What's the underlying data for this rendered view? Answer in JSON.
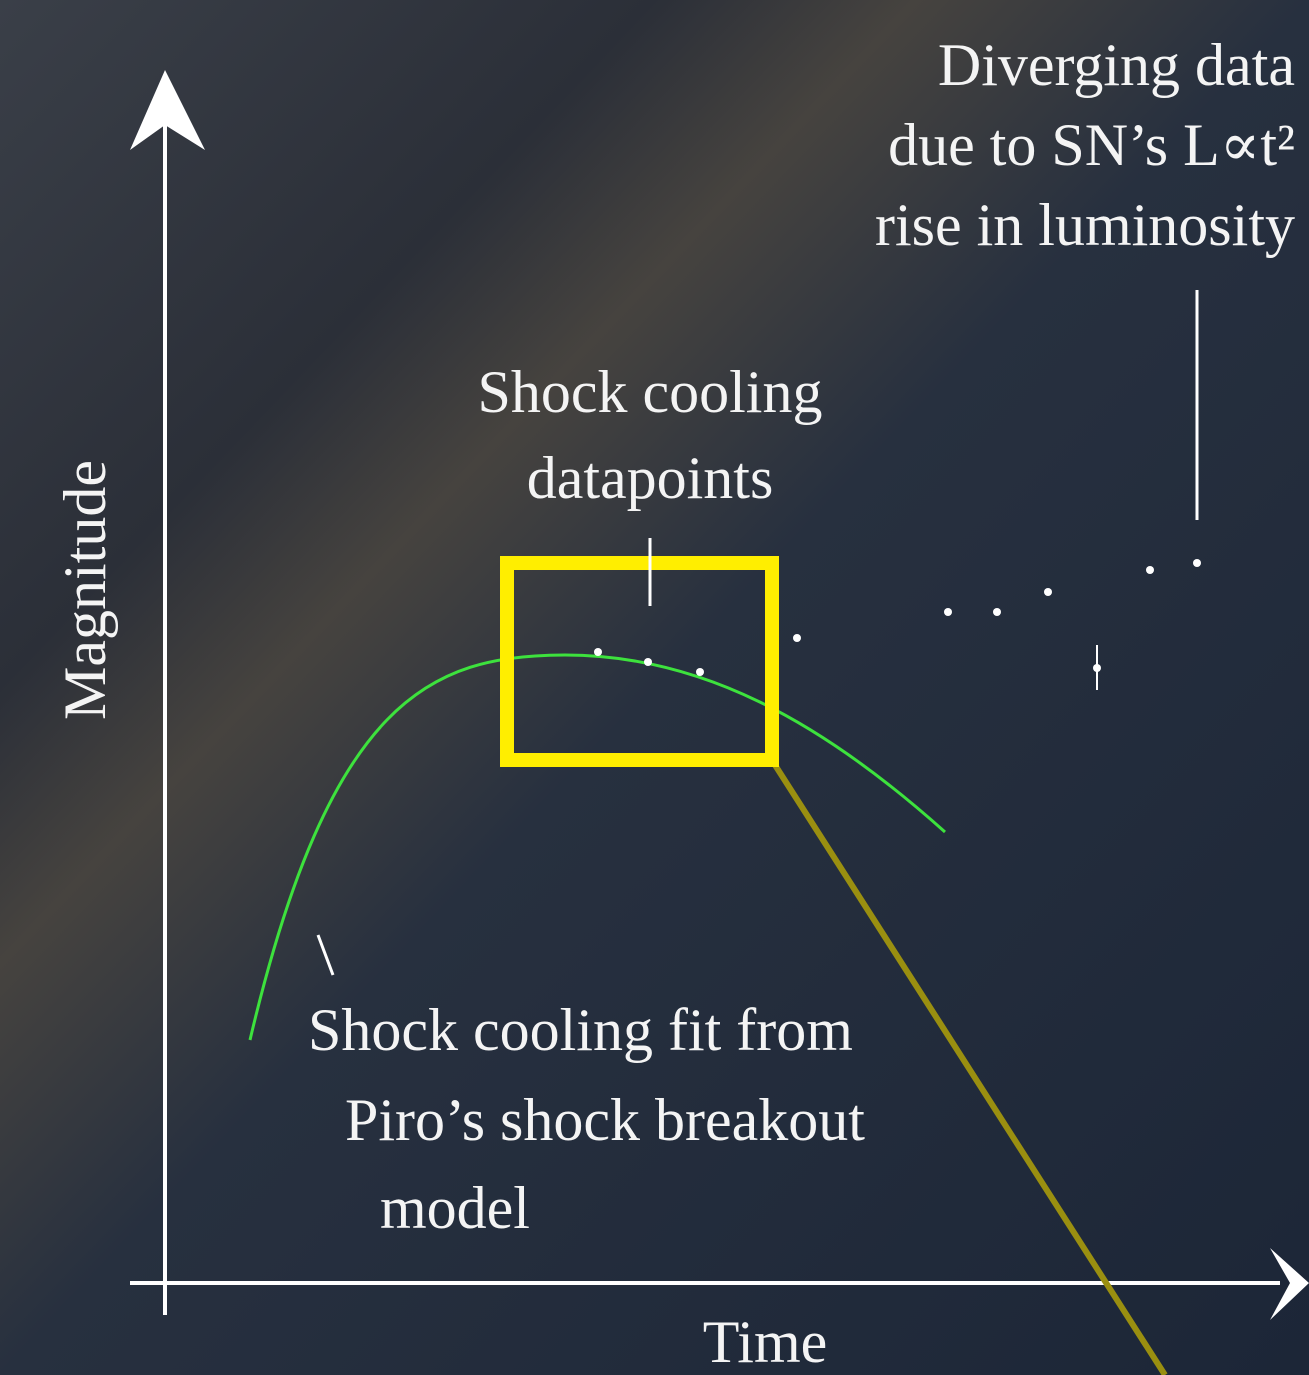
{
  "annotations": {
    "diverging": [
      "Diverging data",
      "due to SN’s L∝t²",
      "rise in luminosity"
    ],
    "datapoints": [
      "Shock cooling",
      "datapoints"
    ],
    "fit": [
      "Shock cooling fit from",
      "Piro’s shock breakout",
      "model"
    ]
  },
  "axes": {
    "y_label": "Magnitude",
    "x_label": "Time"
  }
}
